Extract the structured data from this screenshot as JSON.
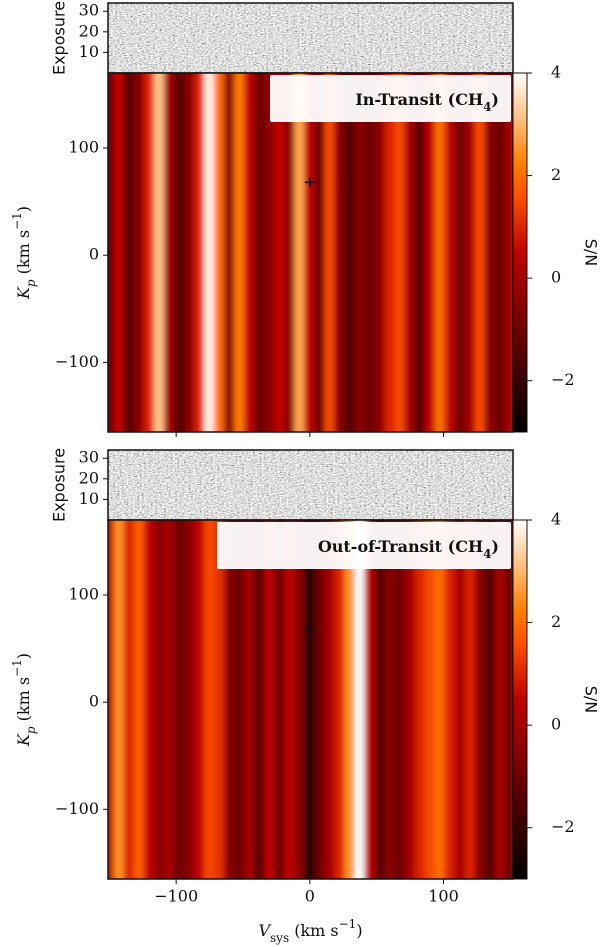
{
  "chart_data": [
    {
      "type": "heatmap",
      "title": [
        "In-Transit (CH",
        "4",
        ")"
      ],
      "x": [
        -150,
        -142.5,
        -135,
        -127.5,
        -120,
        -112.5,
        -105,
        -97.5,
        -90,
        -82.5,
        -75,
        -67.5,
        -60,
        -52.5,
        -45,
        -37.5,
        -30,
        -22.5,
        -15,
        -7.5,
        0,
        7.5,
        15,
        22.5,
        30,
        37.5,
        45,
        52.5,
        60,
        67.5,
        75,
        82.5,
        90,
        97.5,
        105,
        112.5,
        120,
        127.5,
        135,
        142.5,
        150
      ],
      "values": [
        -1,
        0.5,
        -1.5,
        -0.5,
        1,
        3.2,
        0,
        -1.5,
        -0.5,
        1,
        3.8,
        2,
        -0.5,
        2.2,
        0.5,
        -1,
        -0.5,
        0.5,
        -0.5,
        2.8,
        0.5,
        -1,
        1.5,
        -0.5,
        -1.5,
        -0.5,
        -1,
        -0.5,
        1,
        1.5,
        0,
        -1.5,
        0.5,
        2,
        0.5,
        -1,
        0,
        1.5,
        -0.5,
        -1,
        0
      ],
      "xlim": [
        -151,
        152
      ],
      "xticks": [
        {
          "value": -100,
          "label": "−100"
        },
        0,
        100
      ],
      "ylim": [
        -165,
        170
      ],
      "yticks": [
        {
          "value": -100,
          "label": "−100"
        },
        0,
        100
      ],
      "ylabel": [
        "K",
        "p",
        " (km s",
        "−1",
        ")"
      ],
      "colormap": "gist_heat",
      "clim": [
        -3,
        4
      ],
      "cticks": [
        {
          "value": -2,
          "label": "−2"
        },
        0,
        2,
        4
      ],
      "colorbar_label": "S/N",
      "marker": {
        "x": 0,
        "y": 68
      },
      "exposure": {
        "label": "Exposure",
        "ylim": [
          0,
          34
        ],
        "yticks": [
          10,
          20,
          30
        ]
      }
    },
    {
      "type": "heatmap",
      "title": [
        "Out-of-Transit (CH",
        "4",
        ")"
      ],
      "x": [
        -150,
        -142.5,
        -135,
        -127.5,
        -120,
        -112.5,
        -105,
        -97.5,
        -90,
        -82.5,
        -75,
        -67.5,
        -60,
        -52.5,
        -45,
        -37.5,
        -30,
        -22.5,
        -15,
        -7.5,
        0,
        7.5,
        15,
        22.5,
        30,
        37.5,
        45,
        52.5,
        60,
        67.5,
        75,
        82.5,
        90,
        97.5,
        105,
        112.5,
        120,
        127.5,
        135,
        142.5,
        150
      ],
      "values": [
        0.5,
        2.5,
        1,
        1.8,
        0.5,
        -0.5,
        0,
        -1,
        -0.5,
        0.5,
        1.5,
        1.2,
        -0.5,
        -1,
        0,
        -1.5,
        0.5,
        -1,
        0.5,
        -0.5,
        -2.5,
        -1,
        0,
        1,
        2.5,
        4,
        0.5,
        -1.5,
        -0.5,
        -1,
        0,
        1,
        1.5,
        2,
        1,
        0,
        1,
        -0.5,
        -1.5,
        0,
        -1
      ],
      "xlim": [
        -151,
        152
      ],
      "xticks": [
        {
          "value": -100,
          "label": "−100"
        },
        0,
        100
      ],
      "xlabel": [
        "V",
        "sys",
        " (km s",
        "−1",
        ")"
      ],
      "ylim": [
        -165,
        170
      ],
      "yticks": [
        {
          "value": -100,
          "label": "−100"
        },
        0,
        100
      ],
      "ylabel": [
        "K",
        "p",
        " (km s",
        "−1",
        ")"
      ],
      "colormap": "gist_heat",
      "clim": [
        -3,
        4
      ],
      "cticks": [
        {
          "value": -2,
          "label": "−2"
        },
        0,
        2,
        4
      ],
      "colorbar_label": "S/N",
      "marker": {
        "x": 0,
        "y": 68
      },
      "exposure": {
        "label": "Exposure",
        "ylim": [
          0,
          34
        ],
        "yticks": [
          10,
          20,
          30
        ]
      }
    }
  ]
}
